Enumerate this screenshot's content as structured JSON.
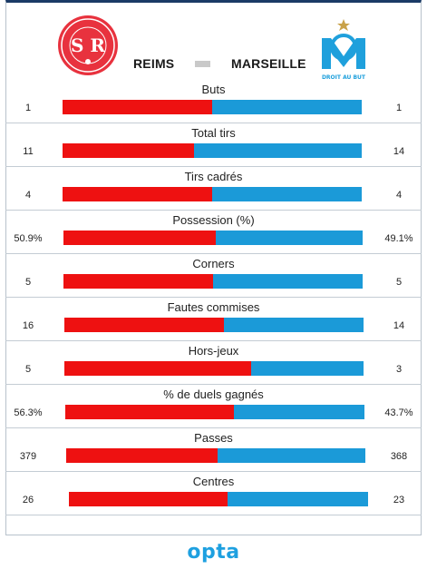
{
  "match": {
    "home_team": "REIMS",
    "away_team": "MARSEILLE",
    "home_logo_text": "STADE DE REIMS",
    "home_logo_initials": "SR",
    "away_logo_text": "DROIT AU BUT"
  },
  "colors": {
    "home": "#ee1111",
    "away": "#1b9ad8"
  },
  "stats": [
    {
      "label": "Buts",
      "home": "1",
      "away": "1",
      "home_share": 0.5
    },
    {
      "label": "Total tirs",
      "home": "11",
      "away": "14",
      "home_share": 0.44
    },
    {
      "label": "Tirs cadrés",
      "home": "4",
      "away": "4",
      "home_share": 0.5
    },
    {
      "label": "Possession (%)",
      "home": "50.9%",
      "away": "49.1%",
      "home_share": 0.509
    },
    {
      "label": "Corners",
      "home": "5",
      "away": "5",
      "home_share": 0.5
    },
    {
      "label": "Fautes commises",
      "home": "16",
      "away": "14",
      "home_share": 0.533
    },
    {
      "label": "Hors-jeux",
      "home": "5",
      "away": "3",
      "home_share": 0.625
    },
    {
      "label": "% de duels gagnés",
      "home": "56.3%",
      "away": "43.7%",
      "home_share": 0.563
    },
    {
      "label": "Passes",
      "home": "379",
      "away": "368",
      "home_share": 0.507
    },
    {
      "label": "Centres",
      "home": "26",
      "away": "23",
      "home_share": 0.531
    }
  ],
  "footer": {
    "brand": "opta"
  }
}
